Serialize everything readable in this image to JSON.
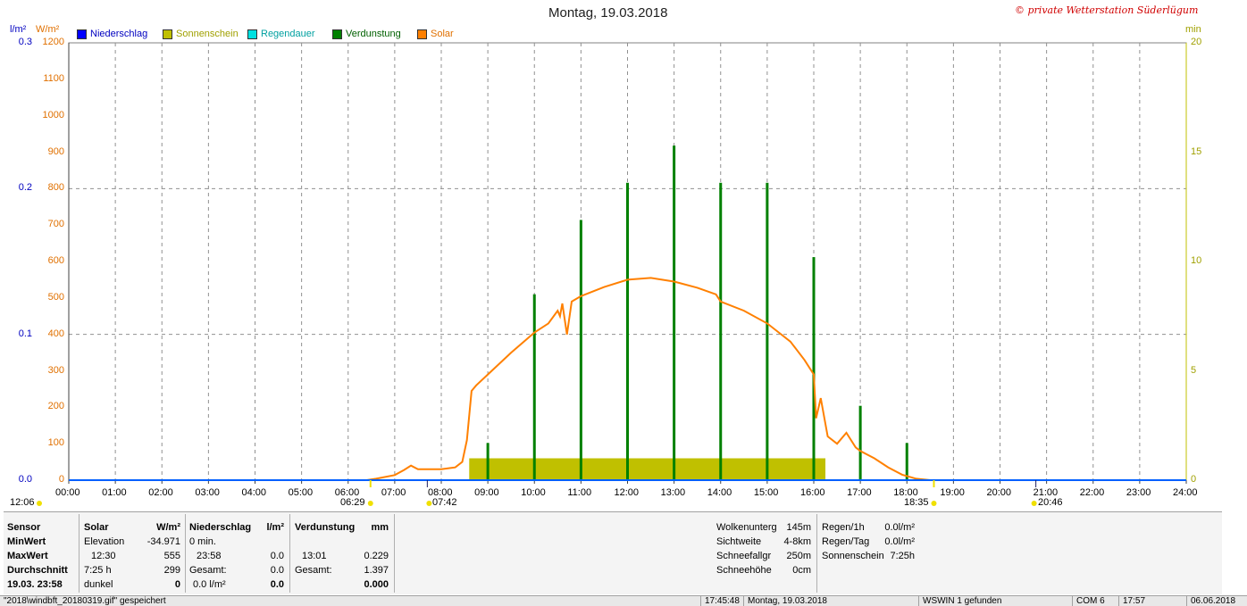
{
  "title": "Montag, 19.03.2018",
  "copyright": "© private Wetterstation Süderlügum",
  "legend": [
    {
      "name": "Niederschlag",
      "color": "#0000ff",
      "text_color": "#0000c0"
    },
    {
      "name": "Sonnenschein",
      "color": "#c0c000",
      "text_color": "#a0a000"
    },
    {
      "name": "Regendauer",
      "color": "#00e0e0",
      "text_color": "#00a0a0"
    },
    {
      "name": "Verdunstung",
      "color": "#008000",
      "text_color": "#006000"
    },
    {
      "name": "Solar",
      "color": "#ff8000",
      "text_color": "#e07000"
    }
  ],
  "axes": {
    "left_unit_rain": "l/m²",
    "left_unit_solar": "W/m²",
    "right_unit": "min",
    "rain_ticks": [
      "0.3",
      "0.2",
      "0.1",
      "0.0"
    ],
    "solar_ticks": [
      "1200",
      "1100",
      "1000",
      "900",
      "800",
      "700",
      "600",
      "500",
      "400",
      "300",
      "200",
      "100",
      "0"
    ],
    "minutes_ticks": [
      "20",
      "15",
      "10",
      "5",
      "0"
    ],
    "x_ticks": [
      "00:00",
      "01:00",
      "02:00",
      "03:00",
      "04:00",
      "05:00",
      "06:00",
      "07:00",
      "08:00",
      "09:00",
      "10:00",
      "11:00",
      "12:00",
      "13:00",
      "14:00",
      "15:00",
      "16:00",
      "17:00",
      "18:00",
      "19:00",
      "20:00",
      "21:00",
      "22:00",
      "23:00",
      "24:00"
    ]
  },
  "markers": {
    "moon_left": "12:06",
    "sunrise": "06:29",
    "moonset": "07:42",
    "sunset": "18:35",
    "moonrise": "20:46"
  },
  "chart_data": {
    "type": "line",
    "x_unit": "hour of day",
    "xlim": [
      0,
      24
    ],
    "solar_ylim": [
      0,
      1200
    ],
    "rain_ylim": [
      0,
      0.3
    ],
    "minutes_ylim": [
      0,
      20
    ],
    "grid": true,
    "series": [
      {
        "name": "Solar",
        "axis": "W/m²",
        "points": [
          [
            0,
            0
          ],
          [
            6.4,
            0
          ],
          [
            6.6,
            4
          ],
          [
            7.0,
            14
          ],
          [
            7.2,
            28
          ],
          [
            7.35,
            40
          ],
          [
            7.5,
            30
          ],
          [
            8.0,
            30
          ],
          [
            8.3,
            35
          ],
          [
            8.45,
            50
          ],
          [
            8.55,
            110
          ],
          [
            8.65,
            245
          ],
          [
            8.75,
            260
          ],
          [
            9.0,
            290
          ],
          [
            9.5,
            350
          ],
          [
            10.0,
            405
          ],
          [
            10.3,
            430
          ],
          [
            10.5,
            465
          ],
          [
            10.55,
            450
          ],
          [
            10.6,
            485
          ],
          [
            10.7,
            400
          ],
          [
            10.8,
            490
          ],
          [
            11.0,
            505
          ],
          [
            11.5,
            530
          ],
          [
            12.0,
            550
          ],
          [
            12.5,
            555
          ],
          [
            13.0,
            545
          ],
          [
            13.5,
            528
          ],
          [
            13.9,
            510
          ],
          [
            14.0,
            490
          ],
          [
            14.5,
            465
          ],
          [
            15.0,
            430
          ],
          [
            15.5,
            380
          ],
          [
            15.8,
            330
          ],
          [
            16.0,
            290
          ],
          [
            16.05,
            170
          ],
          [
            16.15,
            225
          ],
          [
            16.3,
            120
          ],
          [
            16.5,
            100
          ],
          [
            16.7,
            130
          ],
          [
            16.9,
            90
          ],
          [
            17.0,
            80
          ],
          [
            17.3,
            60
          ],
          [
            17.6,
            35
          ],
          [
            17.9,
            15
          ],
          [
            18.2,
            4
          ],
          [
            18.5,
            0
          ],
          [
            24,
            0
          ]
        ]
      },
      {
        "name": "Verdunstung",
        "axis": "min",
        "bars": [
          [
            9.0,
            1.7
          ],
          [
            10.0,
            8.5
          ],
          [
            11.0,
            11.9
          ],
          [
            12.0,
            13.6
          ],
          [
            13.0,
            15.3
          ],
          [
            14.0,
            13.6
          ],
          [
            15.0,
            13.6
          ],
          [
            16.0,
            10.2
          ],
          [
            17.0,
            3.4
          ],
          [
            18.0,
            1.7
          ]
        ]
      },
      {
        "name": "Sonnenschein",
        "axis": "min",
        "spans": [
          [
            8.6,
            16.25,
            1.0
          ]
        ]
      },
      {
        "name": "Niederschlag",
        "axis": "l/m²",
        "points": [
          [
            0,
            0
          ],
          [
            24,
            0
          ]
        ]
      }
    ]
  },
  "panel": {
    "row_labels": [
      "Sensor",
      "MinWert",
      "MaxWert",
      "Durchschnitt",
      "19.03. 23:58"
    ],
    "solar": {
      "header": "Solar",
      "unit": "W/m²",
      "rows": [
        [
          "Elevation",
          "-34.971"
        ],
        [
          "12:30",
          "555"
        ],
        [
          "7:25 h",
          "299"
        ],
        [
          "dunkel",
          "0"
        ]
      ]
    },
    "niederschlag": {
      "header": "Niederschlag",
      "unit": "l/m²",
      "rows": [
        [
          "0 min.",
          ""
        ],
        [
          "23:58",
          "0.0"
        ],
        [
          "Gesamt:",
          "0.0"
        ],
        [
          "0.0 l/m²",
          "0.0"
        ]
      ]
    },
    "verdunstung": {
      "header": "Verdunstung",
      "unit": "mm",
      "rows": [
        [
          "",
          ""
        ],
        [
          "13:01",
          "0.229"
        ],
        [
          "Gesamt:",
          "1.397"
        ],
        [
          "",
          "0.000"
        ]
      ]
    },
    "extra1": [
      [
        "Wolkenunterg",
        "145m"
      ],
      [
        "Sichtweite",
        "4-8km"
      ],
      [
        "Schneefallgr",
        "250m"
      ],
      [
        "Schneehöhe",
        "0cm"
      ]
    ],
    "extra2": [
      [
        "Regen/1h",
        "0.0l/m²"
      ],
      [
        "Regen/Tag",
        "0.0l/m²"
      ],
      [
        "Sonnenschein",
        "7:25h"
      ]
    ]
  },
  "status": {
    "file": "\"2018\\windbft_20180319.gif\" gespeichert",
    "time": "17:45:48",
    "date": "Montag, 19.03.2018",
    "device": "WSWIN 1 gefunden",
    "port": "COM 6",
    "clock": "17:57",
    "today": "06.06.2018"
  }
}
